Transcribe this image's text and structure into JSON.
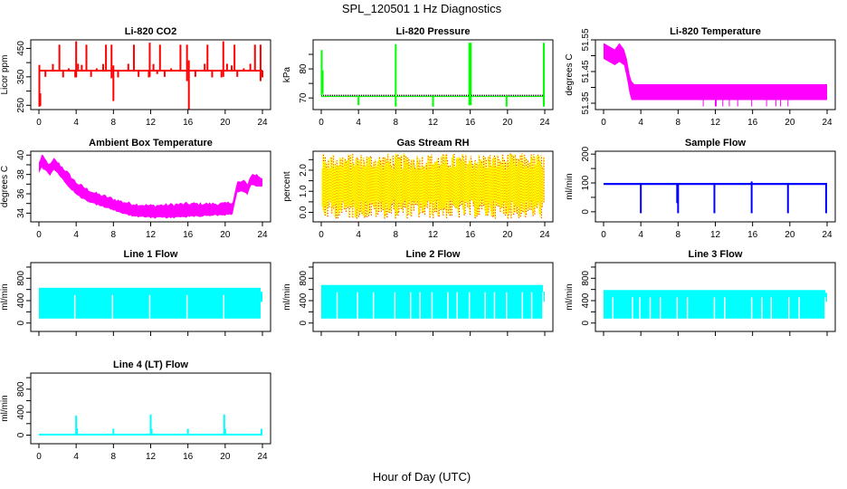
{
  "figure": {
    "title": "SPL_120501  1 Hz Diagnostics",
    "xlabel": "Hour of Day (UTC)"
  },
  "chart_data": [
    {
      "type": "line",
      "title": "Li-820 CO2",
      "ylabel": "Licor ppm",
      "color": "#ff0000",
      "xlim": [
        0,
        24
      ],
      "ylim": [
        235,
        480
      ],
      "yticks": [
        250,
        300,
        350,
        400,
        450
      ],
      "yticklabels": [
        "250",
        "",
        "350",
        "",
        "450"
      ],
      "xticks": [
        0,
        4,
        8,
        12,
        16,
        20,
        24
      ],
      "baseline": 372,
      "band": [
        370,
        375
      ],
      "spikes": [
        {
          "x": 0.05,
          "lo": 245,
          "hi": 392
        },
        {
          "x": 0.15,
          "lo": 248,
          "hi": 292
        },
        {
          "x": 2.2,
          "lo": 372,
          "hi": 463
        },
        {
          "x": 4.0,
          "lo": 348,
          "hi": 475
        },
        {
          "x": 5.1,
          "lo": 372,
          "hi": 463
        },
        {
          "x": 7.2,
          "lo": 372,
          "hi": 463
        },
        {
          "x": 7.8,
          "lo": 345,
          "hi": 463
        },
        {
          "x": 8.0,
          "lo": 265,
          "hi": 390
        },
        {
          "x": 10.2,
          "lo": 372,
          "hi": 463
        },
        {
          "x": 11.9,
          "lo": 350,
          "hi": 470
        },
        {
          "x": 13.0,
          "lo": 372,
          "hi": 463
        },
        {
          "x": 15.2,
          "lo": 372,
          "hi": 463
        },
        {
          "x": 15.9,
          "lo": 335,
          "hi": 463
        },
        {
          "x": 16.1,
          "lo": 230,
          "hi": 408
        },
        {
          "x": 18.1,
          "lo": 372,
          "hi": 463
        },
        {
          "x": 19.8,
          "lo": 350,
          "hi": 475
        },
        {
          "x": 21.0,
          "lo": 372,
          "hi": 463
        },
        {
          "x": 23.2,
          "lo": 372,
          "hi": 463
        },
        {
          "x": 23.8,
          "lo": 335,
          "hi": 463
        }
      ],
      "small_spikes": [
        [
          0.7,
          350
        ],
        [
          1.5,
          395
        ],
        [
          2.6,
          348
        ],
        [
          3.2,
          380
        ],
        [
          3.9,
          348
        ],
        [
          4.2,
          396
        ],
        [
          4.6,
          392
        ],
        [
          5.6,
          350
        ],
        [
          6.2,
          380
        ],
        [
          6.9,
          395
        ],
        [
          8.5,
          348
        ],
        [
          9.6,
          396
        ],
        [
          10.7,
          350
        ],
        [
          11.8,
          348
        ],
        [
          12.3,
          395
        ],
        [
          12.7,
          360
        ],
        [
          13.5,
          350
        ],
        [
          14.2,
          380
        ],
        [
          16.8,
          350
        ],
        [
          17.8,
          396
        ],
        [
          18.6,
          348
        ],
        [
          19.6,
          348
        ],
        [
          20.2,
          396
        ],
        [
          20.7,
          390
        ],
        [
          21.3,
          350
        ],
        [
          22.0,
          380
        ],
        [
          22.7,
          396
        ],
        [
          24.0,
          348
        ]
      ]
    },
    {
      "type": "line",
      "title": "Li-820 Pressure",
      "ylabel": "kPa",
      "color": "#00ff00",
      "xlim": [
        0,
        24
      ],
      "ylim": [
        66,
        90
      ],
      "yticks": [
        70,
        75,
        80,
        85
      ],
      "yticklabels": [
        "70",
        "",
        "80",
        ""
      ],
      "xticks": [
        0,
        4,
        8,
        12,
        16,
        20,
        24
      ],
      "baseline": 70.8,
      "spikes": [
        {
          "x": 0.05,
          "lo": 70.8,
          "hi": 86.5
        },
        {
          "x": 0.15,
          "lo": 71.5,
          "hi": 79.5
        },
        {
          "x": 4.0,
          "lo": 67.5,
          "hi": 70.8
        },
        {
          "x": 8.0,
          "lo": 67.0,
          "hi": 88.5
        },
        {
          "x": 12.0,
          "lo": 67.0,
          "hi": 70.8
        },
        {
          "x": 15.9,
          "lo": 67.5,
          "hi": 89.0
        },
        {
          "x": 16.05,
          "lo": 67.5,
          "hi": 89.0
        },
        {
          "x": 19.9,
          "lo": 67.0,
          "hi": 70.8
        },
        {
          "x": 23.9,
          "lo": 67.0,
          "hi": 89.0
        }
      ]
    },
    {
      "type": "area",
      "title": "Li-820 Temperature",
      "ylabel": "degrees C",
      "color": "#ff00ff",
      "xlim": [
        0,
        24
      ],
      "ylim": [
        51.33,
        51.55
      ],
      "yticks": [
        51.35,
        51.4,
        51.45,
        51.5,
        51.55
      ],
      "yticklabels": [
        "51.35",
        "",
        "51.45",
        "",
        "51.55"
      ],
      "xticks": [
        0,
        4,
        8,
        12,
        16,
        20,
        24
      ],
      "band": [
        [
          0.0,
          51.49,
          51.54
        ],
        [
          1.2,
          51.47,
          51.52
        ],
        [
          1.7,
          51.48,
          51.54
        ],
        [
          2.2,
          51.47,
          51.52
        ],
        [
          2.5,
          51.43,
          51.49
        ],
        [
          2.8,
          51.38,
          51.44
        ],
        [
          3.0,
          51.36,
          51.42
        ],
        [
          3.3,
          51.36,
          51.41
        ],
        [
          24.0,
          51.36,
          51.41
        ]
      ],
      "drops": [
        10.7,
        12.0,
        12.1,
        12.8,
        13.5,
        14.4,
        15.9,
        17.5,
        18.5,
        19.0,
        19.8
      ],
      "drop_value": 51.34
    },
    {
      "type": "area",
      "title": "Ambient Box Temperature",
      "ylabel": "degrees C",
      "color": "#ff00ff",
      "xlim": [
        0,
        24
      ],
      "ylim": [
        33.1,
        40.4
      ],
      "yticks": [
        34,
        35,
        36,
        37,
        38,
        39,
        40
      ],
      "yticklabels": [
        "34",
        "",
        "36",
        "",
        "38",
        "",
        "40"
      ],
      "xticks": [
        0,
        4,
        8,
        12,
        16,
        20,
        24
      ],
      "band": [
        [
          0.0,
          38.2,
          39.2
        ],
        [
          0.3,
          38.8,
          40.0
        ],
        [
          0.8,
          38.4,
          39.4
        ],
        [
          1.2,
          38.0,
          39.0
        ],
        [
          1.6,
          38.6,
          39.6
        ],
        [
          2.0,
          38.2,
          39.3
        ],
        [
          3.0,
          37.0,
          38.3
        ],
        [
          4.0,
          36.0,
          37.2
        ],
        [
          5.0,
          35.4,
          36.6
        ],
        [
          6.0,
          35.0,
          36.1
        ],
        [
          7.0,
          34.7,
          35.8
        ],
        [
          8.0,
          34.4,
          35.5
        ],
        [
          9.0,
          34.0,
          35.2
        ],
        [
          10.0,
          33.8,
          35.0
        ],
        [
          12.0,
          33.6,
          34.8
        ],
        [
          14.0,
          33.6,
          34.9
        ],
        [
          16.0,
          33.7,
          35.0
        ],
        [
          18.0,
          33.8,
          35.0
        ],
        [
          20.0,
          33.9,
          35.0
        ],
        [
          20.8,
          34.0,
          35.2
        ],
        [
          21.3,
          36.2,
          37.2
        ],
        [
          22.0,
          36.3,
          37.3
        ],
        [
          22.4,
          36.0,
          37.1
        ],
        [
          22.8,
          37.0,
          38.0
        ],
        [
          23.4,
          36.8,
          38.0
        ],
        [
          24.0,
          36.8,
          37.6
        ]
      ]
    },
    {
      "type": "area",
      "title": "Gas Stream RH",
      "ylabel": "percent",
      "color": "#ff0000",
      "color2": "#ffff00",
      "xlim": [
        0,
        24
      ],
      "ylim": [
        -0.45,
        2.9
      ],
      "yticks": [
        0.0,
        0.5,
        1.0,
        1.5,
        2.0,
        2.5
      ],
      "yticklabels": [
        "0.0",
        "",
        "1.0",
        "",
        "2.0",
        ""
      ],
      "xticks": [
        0,
        4,
        8,
        12,
        16,
        20,
        24
      ],
      "core": [
        0.6,
        2.0
      ],
      "range": [
        -0.3,
        2.8
      ]
    },
    {
      "type": "line",
      "title": "Sample Flow",
      "ylabel": "ml/min",
      "color": "#0000ff",
      "xlim": [
        0,
        24
      ],
      "ylim": [
        -35,
        210
      ],
      "yticks": [
        0,
        50,
        100,
        150,
        200
      ],
      "yticklabels": [
        "0",
        "",
        "100",
        "",
        "200"
      ],
      "xticks": [
        0,
        4,
        8,
        12,
        16,
        20,
        24
      ],
      "band": [
        93,
        100
      ],
      "spikes": [
        {
          "x": 4.0,
          "lo": -5,
          "hi": 100
        },
        {
          "x": 7.9,
          "lo": 30,
          "hi": 100
        },
        {
          "x": 8.0,
          "lo": -5,
          "hi": 100
        },
        {
          "x": 11.9,
          "lo": -5,
          "hi": 100
        },
        {
          "x": 15.9,
          "lo": -5,
          "hi": 105
        },
        {
          "x": 19.8,
          "lo": -5,
          "hi": 100
        },
        {
          "x": 23.9,
          "lo": -5,
          "hi": 100
        }
      ]
    },
    {
      "type": "area",
      "title": "Line 1 Flow",
      "ylabel": "ml/min",
      "color": "#00ffff",
      "xlim": [
        0,
        24
      ],
      "ylim": [
        -150,
        1080
      ],
      "yticks": [
        0,
        200,
        400,
        600,
        800,
        1000
      ],
      "yticklabels": [
        "0",
        "",
        "400",
        "",
        "800",
        ""
      ],
      "xticks": [
        0,
        4,
        8,
        12,
        16,
        20,
        24
      ],
      "band": [
        80,
        630
      ],
      "gaps": [
        3.85,
        7.9,
        11.9,
        15.9,
        19.85
      ],
      "end": [
        23.8,
        24.0,
        380,
        560
      ]
    },
    {
      "type": "area",
      "title": "Line 2 Flow",
      "ylabel": "ml/min",
      "color": "#00ffff",
      "xlim": [
        0,
        24
      ],
      "ylim": [
        -150,
        1080
      ],
      "yticks": [
        0,
        200,
        400,
        600,
        800,
        1000
      ],
      "yticklabels": [
        "0",
        "",
        "400",
        "",
        "800",
        ""
      ],
      "xticks": [
        0,
        4,
        8,
        12,
        16,
        20,
        24
      ],
      "band": [
        80,
        680
      ],
      "gaps": [
        1.7,
        3.9,
        5.6,
        7.9,
        9.6,
        10.6,
        11.9,
        13.6,
        14.6,
        15.9,
        17.6,
        18.6,
        19.9,
        21.6,
        22.6,
        23.8
      ],
      "end": [
        23.8,
        24.0,
        380,
        560
      ]
    },
    {
      "type": "area",
      "title": "Line 3 Flow",
      "ylabel": "ml/min",
      "color": "#00ffff",
      "xlim": [
        0,
        24
      ],
      "ylim": [
        -150,
        1080
      ],
      "yticks": [
        0,
        200,
        400,
        600,
        800,
        1000
      ],
      "yticklabels": [
        "0",
        "",
        "400",
        "",
        "800",
        ""
      ],
      "xticks": [
        0,
        4,
        8,
        12,
        16,
        20,
        24
      ],
      "band": [
        80,
        590
      ],
      "gaps": [
        1.0,
        3.1,
        3.9,
        5.0,
        6.1,
        7.9,
        9.0,
        11.9,
        13.0,
        15.9,
        17.0,
        18.0,
        19.9,
        21.0,
        23.8
      ],
      "end": [
        23.8,
        24.0,
        380,
        540
      ]
    },
    {
      "type": "line",
      "title": "Line 4 (LT) Flow",
      "ylabel": "ml/min",
      "color": "#00ffff",
      "xlim": [
        0,
        24
      ],
      "ylim": [
        -150,
        1080
      ],
      "yticks": [
        0,
        200,
        400,
        600,
        800,
        1000
      ],
      "yticklabels": [
        "0",
        "",
        "400",
        "",
        "800",
        ""
      ],
      "xticks": [
        0,
        4,
        8,
        12,
        16,
        20,
        24
      ],
      "xticklabels": [
        "0",
        "4",
        "8",
        "12",
        "16",
        "20",
        "24"
      ],
      "band": [
        0,
        25
      ],
      "spikes": [
        {
          "x": 4.0,
          "lo": 0,
          "hi": 340
        },
        {
          "x": 4.1,
          "lo": 0,
          "hi": 120
        },
        {
          "x": 8.0,
          "lo": 0,
          "hi": 110
        },
        {
          "x": 12.0,
          "lo": 0,
          "hi": 360
        },
        {
          "x": 12.1,
          "lo": 0,
          "hi": 110
        },
        {
          "x": 16.0,
          "lo": 0,
          "hi": 110
        },
        {
          "x": 19.9,
          "lo": 0,
          "hi": 360
        },
        {
          "x": 20.0,
          "lo": 0,
          "hi": 110
        },
        {
          "x": 23.9,
          "lo": 0,
          "hi": 110
        }
      ]
    }
  ]
}
